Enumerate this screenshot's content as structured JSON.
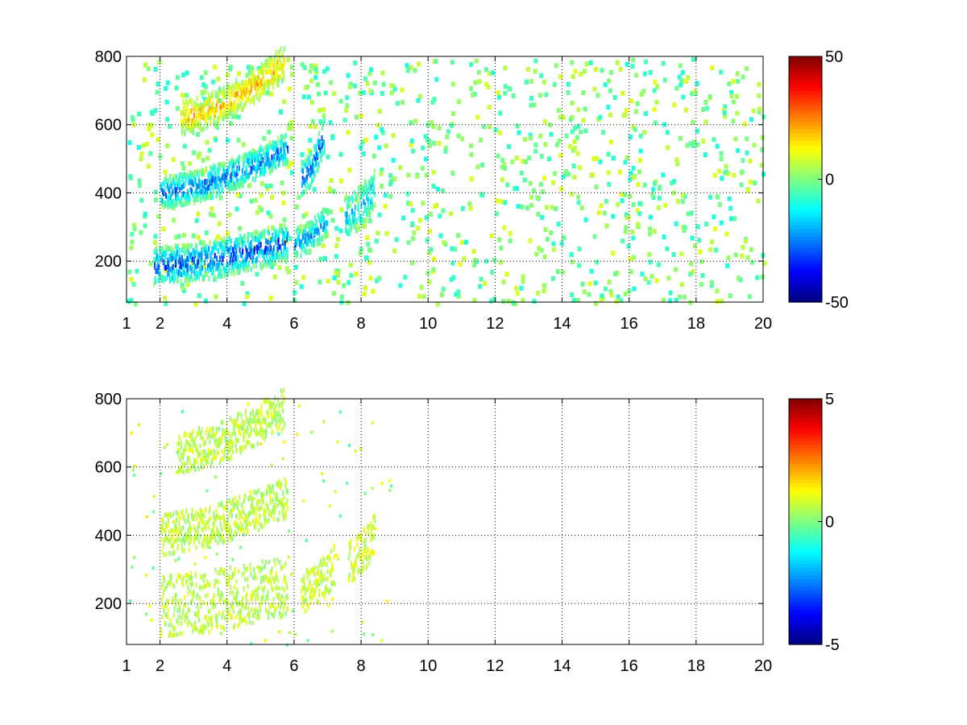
{
  "colormap": "jet",
  "chart_data": [
    {
      "type": "heatmap",
      "title": "",
      "xlabel": "",
      "ylabel": "",
      "xlim": [
        1,
        20
      ],
      "ylim": [
        80,
        800
      ],
      "xticks": [
        1,
        2,
        4,
        6,
        8,
        10,
        12,
        14,
        16,
        18,
        20
      ],
      "yticks": [
        200,
        400,
        600,
        800
      ],
      "grid": true,
      "colorbar": {
        "min": -50,
        "max": 50,
        "ticks": [
          50,
          0,
          -50
        ]
      },
      "bands": [
        {
          "x_start": 1.8,
          "x_end": 5.8,
          "y_start": 195,
          "y_end": 265,
          "value": -35,
          "width": 55
        },
        {
          "x_start": 2.0,
          "x_end": 5.8,
          "y_start": 410,
          "y_end": 540,
          "value": -30,
          "width": 45
        },
        {
          "x_start": 2.6,
          "x_end": 5.7,
          "y_start": 630,
          "y_end": 790,
          "value": 20,
          "width": 50
        },
        {
          "x_start": 6.0,
          "x_end": 7.0,
          "y_start": 260,
          "y_end": 330,
          "value": -25,
          "width": 45
        },
        {
          "x_start": 6.2,
          "x_end": 6.9,
          "y_start": 450,
          "y_end": 580,
          "value": -35,
          "width": 50
        },
        {
          "x_start": 7.5,
          "x_end": 8.4,
          "y_start": 340,
          "y_end": 420,
          "value": -20,
          "width": 60
        }
      ],
      "noise": {
        "x_start": 1,
        "x_end": 20,
        "value_range": [
          -10,
          10
        ]
      }
    },
    {
      "type": "heatmap",
      "title": "",
      "xlabel": "",
      "ylabel": "",
      "xlim": [
        1,
        20
      ],
      "ylim": [
        80,
        800
      ],
      "xticks": [
        1,
        2,
        4,
        6,
        8,
        10,
        12,
        14,
        16,
        18,
        20
      ],
      "yticks": [
        200,
        400,
        600,
        800
      ],
      "grid": true,
      "colorbar": {
        "min": -5,
        "max": 5,
        "ticks": [
          5,
          0,
          -5
        ]
      },
      "bands": [
        {
          "x_start": 2.0,
          "x_end": 5.8,
          "y_start": 200,
          "y_end": 260,
          "value": 0.6,
          "width": 90
        },
        {
          "x_start": 2.0,
          "x_end": 5.8,
          "y_start": 410,
          "y_end": 520,
          "value": 0.6,
          "width": 60
        },
        {
          "x_start": 2.5,
          "x_end": 5.7,
          "y_start": 650,
          "y_end": 780,
          "value": 0.6,
          "width": 60
        },
        {
          "x_start": 6.2,
          "x_end": 7.2,
          "y_start": 240,
          "y_end": 320,
          "value": 0.8,
          "width": 60
        },
        {
          "x_start": 7.6,
          "x_end": 8.4,
          "y_start": 330,
          "y_end": 410,
          "value": 0.8,
          "width": 60
        }
      ],
      "noise": {
        "x_start": 1,
        "x_end": 9,
        "value_range": [
          -0.5,
          1.5
        ]
      }
    }
  ]
}
